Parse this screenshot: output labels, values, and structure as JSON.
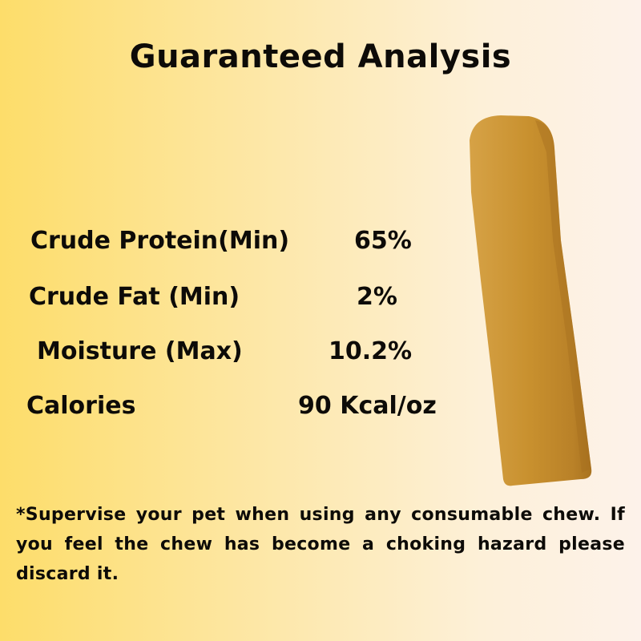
{
  "title": "Guaranteed Analysis",
  "analysis": [
    {
      "label": "Crude Protein(Min)",
      "value": "65%"
    },
    {
      "label": "Crude Fat (Min)",
      "value": "2%"
    },
    {
      "label": "Moisture (Max)",
      "value": "10.2%"
    },
    {
      "label": "Calories",
      "value": "90 Kcal/oz"
    }
  ],
  "footnote": "*Supervise your pet when using any consumable chew. If you feel the chew has become a choking hazard please discard it.",
  "colors": {
    "background_left": "#fddd6a",
    "background_right": "#fdf2ea",
    "chew": "#c8902e",
    "text": "#0d0b08"
  },
  "image": "yak-cheese-chew"
}
